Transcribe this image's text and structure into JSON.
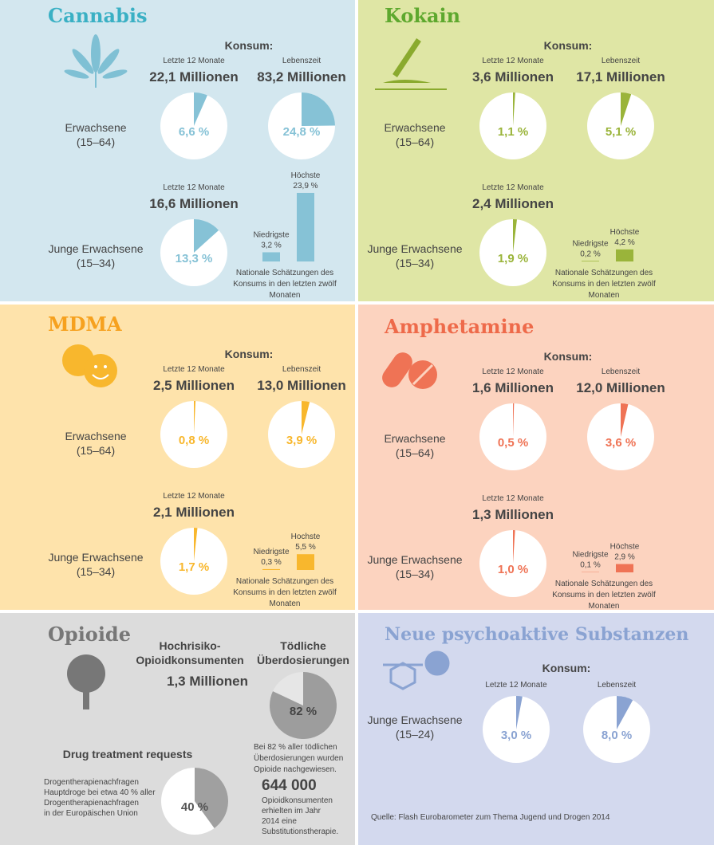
{
  "drug_panels": [
    {
      "title": "Cannabis",
      "color": "#3ab0c4",
      "slice_color": "#86c2d6",
      "background": "#d3e7ef",
      "consumption": "Konsum:",
      "adults": {
        "label": "Erwachsene",
        "age": "(15–64)",
        "last_12_months": {
          "period": "Letzte 12 Monate",
          "users": "22,1 Millionen",
          "share": {
            "value": 6.6,
            "label": "6,6 %"
          }
        },
        "lifetime": {
          "period": "Lebenszeit",
          "users": "83,2 Millionen",
          "share": {
            "value": 24.8,
            "label": "24,8 %"
          }
        }
      },
      "young": {
        "label": "Junge Erwachsene",
        "age": "(15–34)",
        "last_12_months": {
          "period": "Letzte 12 Monate",
          "users": "16,6 Millionen",
          "share": {
            "value": 13.3,
            "label": "13,3 %"
          }
        }
      },
      "national": {
        "lowest": {
          "label": "Niedrigste",
          "share": {
            "value": 3.2,
            "label": "3,2 %"
          }
        },
        "highest": {
          "label": "Höchste",
          "share": {
            "value": 23.9,
            "label": "23,9 %"
          }
        },
        "caption": [
          "Nationale Schätzungen des",
          "Konsums in den letzten zwölf",
          "Monaten"
        ]
      }
    },
    {
      "title": "Kokain",
      "color": "#5ea82e",
      "slice_color": "#9ab43a",
      "background": "#dfe6a5",
      "consumption": "Konsum:",
      "adults": {
        "label": "Erwachsene",
        "age": "(15–64)",
        "last_12_months": {
          "period": "Letzte 12 Monate",
          "users": "3,6 Millionen",
          "share": {
            "value": 1.1,
            "label": "1,1 %"
          }
        },
        "lifetime": {
          "period": "Lebenszeit",
          "users": "17,1 Millionen",
          "share": {
            "value": 5.1,
            "label": "5,1 %"
          }
        }
      },
      "young": {
        "label": "Junge Erwachsene",
        "age": "(15–34)",
        "last_12_months": {
          "period": "Letzte 12 Monate",
          "users": "2,4 Millionen",
          "share": {
            "value": 1.9,
            "label": "1,9 %"
          }
        }
      },
      "national": {
        "lowest": {
          "label": "Niedrigste",
          "share": {
            "value": 0.2,
            "label": "0,2 %"
          }
        },
        "highest": {
          "label": "Höchste",
          "share": {
            "value": 4.2,
            "label": "4,2 %"
          }
        },
        "caption": [
          "Nationale Schätzungen des",
          "Konsums in den letzten zwölf",
          "Monaten"
        ]
      }
    },
    {
      "title": "MDMA",
      "color": "#f6a11e",
      "slice_color": "#f8b72d",
      "background": "#fee3ab",
      "consumption": "Konsum:",
      "adults": {
        "label": "Erwachsene",
        "age": "(15–64)",
        "last_12_months": {
          "period": "Letzte 12 Monate",
          "users": "2,5 Millionen",
          "share": {
            "value": 0.8,
            "label": "0,8 %"
          }
        },
        "lifetime": {
          "period": "Lebenszeit",
          "users": "13,0 Millionen",
          "share": {
            "value": 3.9,
            "label": "3,9 %"
          }
        }
      },
      "young": {
        "label": "Junge Erwachsene",
        "age": "(15–34)",
        "last_12_months": {
          "period": "Letzte 12 Monate",
          "users": "2,1 Millionen",
          "share": {
            "value": 1.7,
            "label": "1,7 %"
          }
        }
      },
      "national": {
        "lowest": {
          "label": "Niedrigste",
          "share": {
            "value": 0.3,
            "label": "0,3 %"
          }
        },
        "highest": {
          "label": "Hochste",
          "share": {
            "value": 5.5,
            "label": "5,5 %"
          }
        },
        "caption": [
          "Nationale Schätzungen des",
          "Konsums in den letzten zwölf",
          "Monaten"
        ]
      }
    },
    {
      "title": "Amphetamine",
      "color": "#ee6a4a",
      "slice_color": "#ef7355",
      "background": "#fcd3bf",
      "consumption": "Konsum:",
      "adults": {
        "label": "Erwachsene",
        "age": "(15–64)",
        "last_12_months": {
          "period": "Letzte 12 Monate",
          "users": "1,6 Millionen",
          "share": {
            "value": 0.5,
            "label": "0,5 %"
          }
        },
        "lifetime": {
          "period": "Lebenszeit",
          "users": "12,0 Millionen",
          "share": {
            "value": 3.6,
            "label": "3,6 %"
          }
        }
      },
      "young": {
        "label": "Junge Erwachsene",
        "age": "(15–34)",
        "last_12_months": {
          "period": "Letzte 12 Monate",
          "users": "1,3 Millionen",
          "share": {
            "value": 1.0,
            "label": "1,0 %"
          }
        }
      },
      "national": {
        "lowest": {
          "label": "Niedrigste",
          "share": {
            "value": 0.1,
            "label": "0,1 %"
          }
        },
        "highest": {
          "label": "Höchste",
          "share": {
            "value": 2.9,
            "label": "2,9 %"
          }
        },
        "caption": [
          "Nationale Schätzungen des",
          "Konsums in den letzten zwölf",
          "Monaten"
        ]
      }
    }
  ],
  "opioids": {
    "title": "Opioide",
    "color": "#777777",
    "background": "#dcdcdc",
    "high_risk": {
      "label": [
        "Hochrisiko-",
        "Opioidkonsumenten"
      ],
      "users": "1,3 Millionen"
    },
    "overdoses": {
      "label": [
        "Tödliche",
        "Überdosierungen"
      ],
      "share": {
        "value": 82,
        "label": "82 %"
      },
      "note": [
        "Bei 82 % aller tödlichen",
        "Überdosierungen wurden",
        "Opioide nachgewiesen."
      ]
    },
    "substitution": {
      "users": "644 000",
      "note": [
        "Opioidkonsumenten",
        "erhielten im Jahr",
        "2014 eine",
        "Substitutionstherapie."
      ]
    },
    "treatment": {
      "title": "Drug treatment requests",
      "share": {
        "value": 40,
        "label": "40 %"
      },
      "note": [
        "Drogentherapienachfragen",
        "Hauptdroge bei etwa 40 % aller",
        "Drogentherapienachfragen",
        "in der Europäischen Union"
      ]
    }
  },
  "nps": {
    "title": "Neue psychoaktive Substanzen",
    "color": "#8aa3d2",
    "slice_color": "#8aa3d2",
    "background": "#d3d9ee",
    "consumption": "Konsum:",
    "young": {
      "label": "Junge Erwachsene",
      "age": "(15–24)",
      "last_12_months": {
        "period": "Letzte 12 Monate",
        "share": {
          "value": 3.0,
          "label": "3,0 %"
        }
      },
      "lifetime": {
        "period": "Lebenszeit",
        "share": {
          "value": 8.0,
          "label": "8,0 %"
        }
      }
    },
    "source": "Quelle: Flash Eurobarometer zum Thema Jugend und Drogen 2014"
  }
}
